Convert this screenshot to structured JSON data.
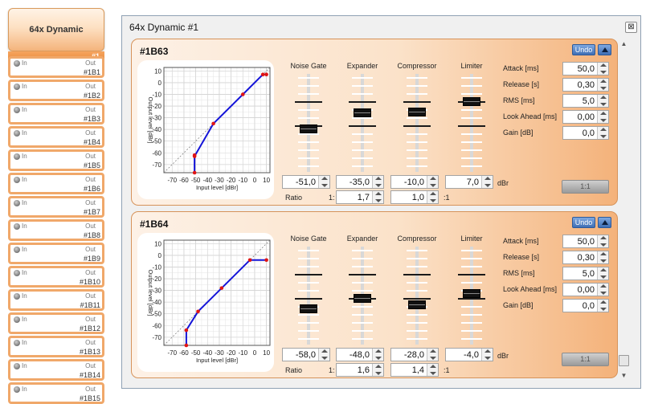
{
  "sidebar": {
    "title": "64x Dynamic",
    "selected_label": "#1",
    "in_label": "In",
    "out_label": "Out",
    "items": [
      "#1B1",
      "#1B2",
      "#1B3",
      "#1B4",
      "#1B5",
      "#1B6",
      "#1B7",
      "#1B8",
      "#1B9",
      "#1B10",
      "#1B11",
      "#1B12",
      "#1B13",
      "#1B14",
      "#1B15"
    ]
  },
  "window": {
    "title": "64x Dynamic #1",
    "close_glyph": "⊠"
  },
  "labels": {
    "undo": "Undo",
    "noise_gate": "Noise Gate",
    "expander": "Expander",
    "compressor": "Compressor",
    "limiter": "Limiter",
    "ratio": "Ratio",
    "ratio_prefix": "1:",
    "ratio_suffix": ":1",
    "unit_dbr": "dBr",
    "attack": "Attack [ms]",
    "release": "Release [s]",
    "rms": "RMS [ms]",
    "look_ahead": "Look Ahead [ms]",
    "gain": "Gain [dB]",
    "one_to_one": "1:1",
    "graph_xlabel": "Input level [dBr]",
    "graph_ylabel": "Output level [dBr]"
  },
  "graph_ticks": {
    "x": [
      "-70",
      "-60",
      "-50",
      "-40",
      "-30",
      "-20",
      "-10",
      "0",
      "10"
    ],
    "y": [
      "10",
      "0",
      "-10",
      "-20",
      "-30",
      "-40",
      "-50",
      "-60",
      "-70"
    ]
  },
  "channels": [
    {
      "name": "#1B63",
      "noise_gate": {
        "threshold": "-51,0"
      },
      "expander": {
        "threshold": "-35,0",
        "ratio": "1,7"
      },
      "compressor": {
        "threshold": "-10,0",
        "ratio": "1,0"
      },
      "limiter": {
        "threshold": "7,0"
      },
      "params": {
        "attack": "50,0",
        "release": "0,30",
        "rms": "5,0",
        "look_ahead": "0,00",
        "gain": "0,0"
      },
      "curve": [
        [
          -51,
          -77
        ],
        [
          -51,
          -62
        ],
        [
          -51,
          -63
        ],
        [
          -35,
          -35
        ],
        [
          -10,
          -10
        ],
        [
          7,
          7
        ],
        [
          10,
          7
        ]
      ]
    },
    {
      "name": "#1B64",
      "noise_gate": {
        "threshold": "-58,0"
      },
      "expander": {
        "threshold": "-48,0",
        "ratio": "1,6"
      },
      "compressor": {
        "threshold": "-28,0",
        "ratio": "1,4"
      },
      "limiter": {
        "threshold": "-4,0"
      },
      "params": {
        "attack": "50,0",
        "release": "0,30",
        "rms": "5,0",
        "look_ahead": "0,00",
        "gain": "0,0"
      },
      "curve": [
        [
          -58,
          -77
        ],
        [
          -58,
          -64
        ],
        [
          -48,
          -48
        ],
        [
          -28,
          -28
        ],
        [
          -4,
          -4
        ],
        [
          10,
          -4
        ]
      ]
    }
  ]
}
